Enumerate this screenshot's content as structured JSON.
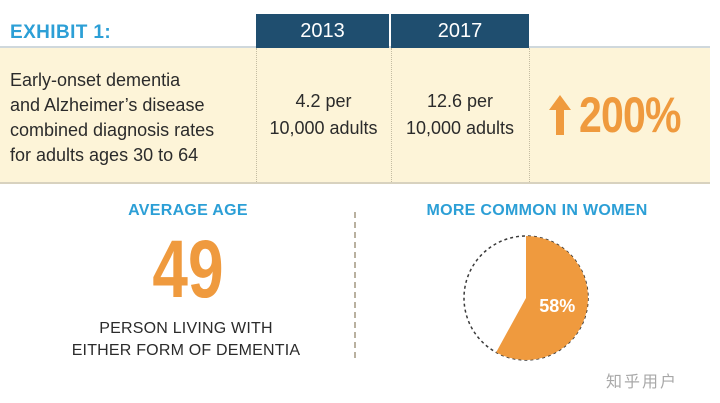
{
  "exhibit": {
    "label": "EXHIBIT 1:",
    "years": [
      "2013",
      "2017"
    ],
    "row_label": "Early-onset dementia and Alzheimer’s disease combined diagnosis rates for adults ages 30 to 64",
    "row_lines": [
      "Early-onset dementia",
      "and Alzheimer’s disease",
      "combined diagnosis rates",
      "for adults ages 30 to 64"
    ],
    "rate_2013": [
      "4.2 per",
      "10,000 adults"
    ],
    "rate_2017": [
      "12.6 per",
      "10,000 adults"
    ],
    "increase": {
      "icon": "up-arrow-icon",
      "value": "200%"
    }
  },
  "average_age": {
    "title": "AVERAGE AGE",
    "value": "49",
    "caption_lines": [
      "PERSON LIVING WITH",
      "EITHER FORM OF DEMENTIA"
    ]
  },
  "women": {
    "title": "MORE COMMON IN WOMEN",
    "percent_label": "58%"
  },
  "chart_data": {
    "type": "pie",
    "title": "MORE COMMON IN WOMEN",
    "slices": [
      {
        "label": "58%",
        "value": 58,
        "color": "#ef9a3e"
      },
      {
        "label": "",
        "value": 42,
        "color": "#ffffff"
      }
    ]
  },
  "colors": {
    "accent_blue": "#2c9fd6",
    "header_navy": "#1f4e6f",
    "accent_orange": "#ef9a3e",
    "row_cream": "#fdf4d8"
  },
  "watermark": "知乎用户"
}
